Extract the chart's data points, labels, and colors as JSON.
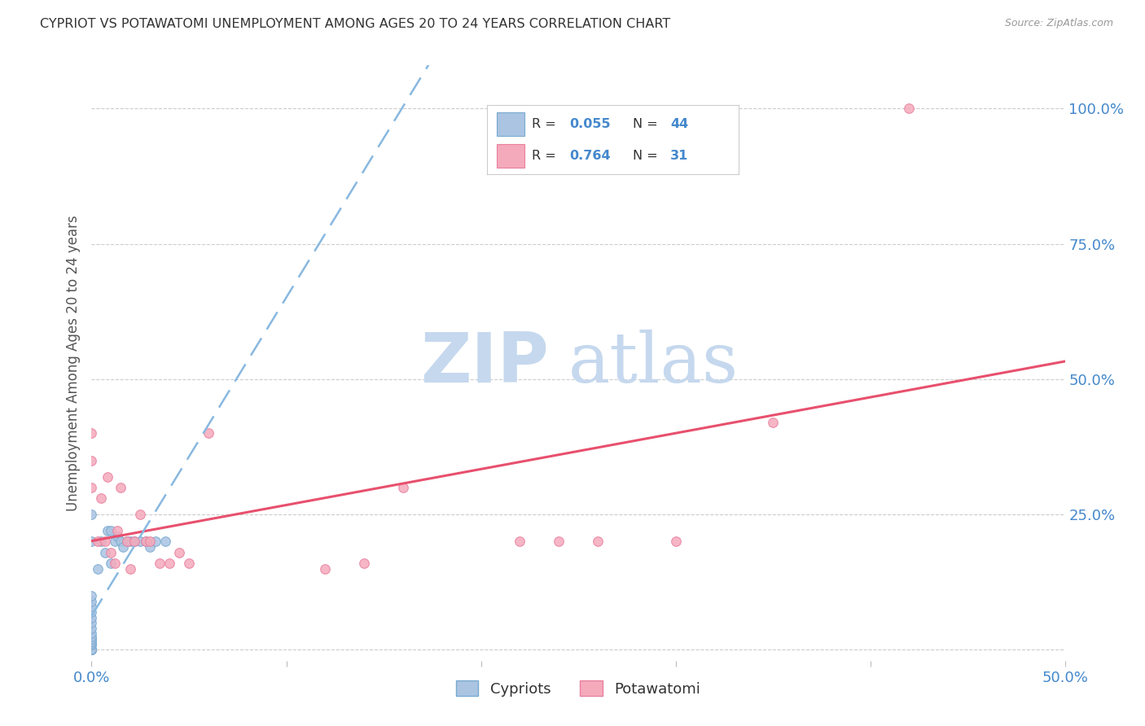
{
  "title": "CYPRIOT VS POTAWATOMI UNEMPLOYMENT AMONG AGES 20 TO 24 YEARS CORRELATION CHART",
  "source": "Source: ZipAtlas.com",
  "ylabel": "Unemployment Among Ages 20 to 24 years",
  "xlim": [
    0.0,
    0.5
  ],
  "ylim": [
    -0.02,
    1.08
  ],
  "xticks": [
    0.0,
    0.1,
    0.2,
    0.3,
    0.4,
    0.5
  ],
  "xticklabels": [
    "0.0%",
    "",
    "",
    "",
    "",
    "50.0%"
  ],
  "ytick_positions": [
    0.0,
    0.25,
    0.5,
    0.75,
    1.0
  ],
  "yticklabels_right": [
    "",
    "25.0%",
    "50.0%",
    "75.0%",
    "100.0%"
  ],
  "cypriot_color": "#aac4e2",
  "potawatomi_color": "#f5aabb",
  "cypriot_edge_color": "#7aaad0",
  "potawatomi_edge_color": "#e880a0",
  "cypriot_line_color": "#88b8e0",
  "potawatomi_line_color": "#e8506e",
  "R_cypriot": 0.055,
  "N_cypriot": 44,
  "R_potawatomi": 0.764,
  "N_potawatomi": 31,
  "watermark_zip": "ZIP",
  "watermark_atlas": "atlas",
  "watermark_color": "#c5d8ee",
  "legend_labels": [
    "Cypriots",
    "Potawatomi"
  ],
  "background_color": "#ffffff",
  "grid_color": "#cccccc",
  "title_color": "#333333",
  "axis_label_color": "#555555",
  "tick_label_color": "#4488cc",
  "marker_size": 70,
  "cypriot_x": [
    0.0,
    0.0,
    0.0,
    0.0,
    0.0,
    0.0,
    0.0,
    0.0,
    0.0,
    0.0,
    0.0,
    0.0,
    0.0,
    0.0,
    0.0,
    0.0,
    0.0,
    0.0,
    0.0,
    0.0,
    0.0,
    0.0,
    0.0,
    0.0,
    0.0,
    0.0,
    0.003,
    0.005,
    0.007,
    0.008,
    0.01,
    0.01,
    0.012,
    0.013,
    0.015,
    0.016,
    0.018,
    0.02,
    0.022,
    0.025,
    0.028,
    0.03,
    0.033,
    0.038
  ],
  "cypriot_y": [
    0.0,
    0.0,
    0.0,
    0.0,
    0.0,
    0.0,
    0.0,
    0.0,
    0.0,
    0.01,
    0.01,
    0.012,
    0.015,
    0.02,
    0.02,
    0.025,
    0.03,
    0.04,
    0.05,
    0.06,
    0.07,
    0.08,
    0.09,
    0.1,
    0.2,
    0.25,
    0.15,
    0.2,
    0.18,
    0.22,
    0.16,
    0.22,
    0.2,
    0.21,
    0.2,
    0.19,
    0.2,
    0.2,
    0.2,
    0.2,
    0.2,
    0.19,
    0.2,
    0.2
  ],
  "potawatomi_x": [
    0.0,
    0.0,
    0.0,
    0.003,
    0.005,
    0.007,
    0.008,
    0.01,
    0.012,
    0.013,
    0.015,
    0.018,
    0.02,
    0.022,
    0.025,
    0.028,
    0.03,
    0.035,
    0.04,
    0.045,
    0.05,
    0.06,
    0.12,
    0.14,
    0.16,
    0.22,
    0.24,
    0.26,
    0.3,
    0.35,
    0.42
  ],
  "potawatomi_y": [
    0.3,
    0.35,
    0.4,
    0.2,
    0.28,
    0.2,
    0.32,
    0.18,
    0.16,
    0.22,
    0.3,
    0.2,
    0.15,
    0.2,
    0.25,
    0.2,
    0.2,
    0.16,
    0.16,
    0.18,
    0.16,
    0.4,
    0.15,
    0.16,
    0.3,
    0.2,
    0.2,
    0.2,
    0.2,
    0.42,
    1.0
  ]
}
